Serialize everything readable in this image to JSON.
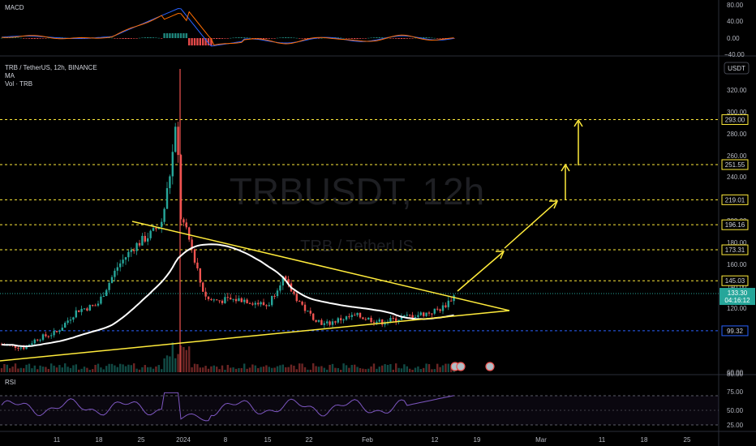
{
  "header": {
    "symbol_line": "TRB / TetherUS, 12h, BINANCE",
    "ma_label": "MA",
    "vol_label": "Vol · TRB",
    "currency": "USDT"
  },
  "watermark": {
    "ticker": "TRBUSDT, 12h",
    "pair": "TRB / TetherUS"
  },
  "macd": {
    "title": "MACD",
    "ticks": [
      "80.00",
      "40.00",
      "0.00",
      "−40.00"
    ]
  },
  "rsi": {
    "title": "RSI",
    "ticks": [
      "75.00",
      "50.00",
      "25.00"
    ]
  },
  "chart_data": {
    "type": "candlestick",
    "price_axis": {
      "ticks": [
        "320.00",
        "300.00",
        "280.00",
        "260.00",
        "240.00",
        "200.00",
        "180.00",
        "160.00",
        "140.00",
        "120.00",
        "80.00",
        "60.00"
      ],
      "ylim": [
        60,
        330
      ]
    },
    "levels": [
      {
        "value": 293.0,
        "label": "293.00",
        "color": "#ffeb3b"
      },
      {
        "value": 251.55,
        "label": "251.55",
        "color": "#ffeb3b"
      },
      {
        "value": 219.01,
        "label": "219.01",
        "color": "#ffeb3b"
      },
      {
        "value": 196.16,
        "label": "196.16",
        "color": "#ffeb3b"
      },
      {
        "value": 173.31,
        "label": "173.31",
        "color": "#ffeb3b"
      },
      {
        "value": 145.03,
        "label": "145.03",
        "color": "#ffeb3b"
      },
      {
        "value": 99.32,
        "label": "99.32",
        "color": "#2962ff"
      }
    ],
    "current_price": {
      "value": 133.3,
      "label": "133.30",
      "countdown": "04:16:12"
    },
    "x_ticks": [
      "11",
      "18",
      "25",
      "2024",
      "8",
      "15",
      "22",
      "Feb",
      "12",
      "19",
      "Mar",
      "11",
      "18",
      "25"
    ],
    "colors": {
      "up": "#26a69a",
      "down": "#ef5350",
      "ma": "#ffffff",
      "trend": "#ffeb3b"
    }
  }
}
